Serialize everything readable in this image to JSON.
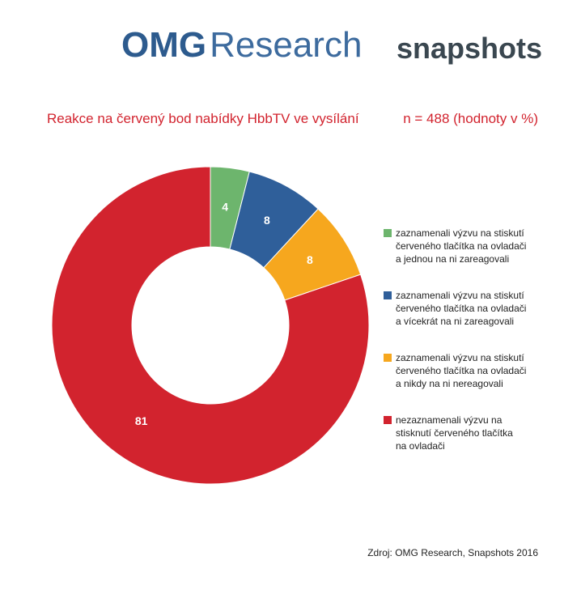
{
  "header": {
    "logo_main": "OMG",
    "logo_sub": "Research",
    "tagline": "snapshots"
  },
  "chart_data": {
    "type": "donut",
    "title": "Reakce na červený bod nabídky HbbTV ve vysílání",
    "subtitle": "n = 488 (hodnoty v %)",
    "categories": [
      "zaznamenali výzvu na stiskutí\nčerveného tlačítka na ovladači\na jednou na ni zareagovali",
      "zaznamenali výzvu na stiskutí\nčerveného tlačítka na ovladači\na vícekrát na ni zareagovali",
      "zaznamenali výzvu na stiskutí\nčerveného tlačítka na ovladači\na nikdy na ni nereagovali",
      "nezaznamenali výzvu na\nstisknutí červeného tlačítka\nna ovladači"
    ],
    "values": [
      4,
      8,
      8,
      81
    ],
    "colors": [
      "#6db56d",
      "#2f5f9a",
      "#f6a71e",
      "#d2232e"
    ],
    "source": "Zdroj: OMG Research, Snapshots 2016"
  }
}
